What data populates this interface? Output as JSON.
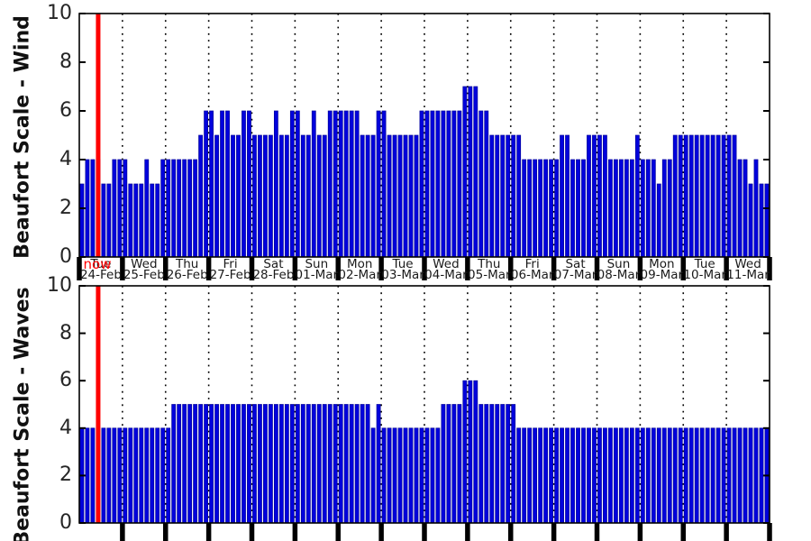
{
  "figure": {
    "background": "#ffffff",
    "bar_color": "#0202dd",
    "bar_edge_color": "#00009a",
    "axis_color": "#000000",
    "tick_label_color": "#262626",
    "day_label_color": "#1a1a1a",
    "now_line_color": "#ff0000",
    "now_label": "now",
    "bars_per_day": 8,
    "num_days": 16
  },
  "days": [
    {
      "name": "Tue",
      "date": "24-Feb"
    },
    {
      "name": "Wed",
      "date": "25-Feb"
    },
    {
      "name": "Thu",
      "date": "26-Feb"
    },
    {
      "name": "Fri",
      "date": "27-Feb"
    },
    {
      "name": "Sat",
      "date": "28-Feb"
    },
    {
      "name": "Sun",
      "date": "01-Mar"
    },
    {
      "name": "Mon",
      "date": "02-Mar"
    },
    {
      "name": "Tue",
      "date": "03-Mar"
    },
    {
      "name": "Wed",
      "date": "04-Mar"
    },
    {
      "name": "Thu",
      "date": "05-Mar"
    },
    {
      "name": "Fri",
      "date": "06-Mar"
    },
    {
      "name": "Sat",
      "date": "07-Mar"
    },
    {
      "name": "Sun",
      "date": "08-Mar"
    },
    {
      "name": "Mon",
      "date": "09-Mar"
    },
    {
      "name": "Tue",
      "date": "10-Mar"
    },
    {
      "name": "Wed",
      "date": "11-Mar"
    }
  ],
  "chart_data": [
    {
      "type": "bar",
      "title": "",
      "ylabel": "Beaufort Scale - Wind",
      "xlabel": "",
      "ylim": [
        0,
        10
      ],
      "yticks": [
        0,
        2,
        4,
        6,
        8,
        10
      ],
      "grid": "vertical dotted lines at each day boundary",
      "legend": "none",
      "x_interval_hours": 3,
      "x_tick_labels": [
        "Tue 24-Feb",
        "Wed 25-Feb",
        "Thu 26-Feb",
        "Fri 27-Feb",
        "Sat 28-Feb",
        "Sun 01-Mar",
        "Mon 02-Mar",
        "Tue 03-Mar",
        "Wed 04-Mar",
        "Thu 05-Mar",
        "Fri 06-Mar",
        "Sat 07-Mar",
        "Sun 08-Mar",
        "Mon 09-Mar",
        "Tue 10-Mar",
        "Wed 11-Mar"
      ],
      "now_marker": {
        "day_index": 0,
        "slot": 3.5,
        "label": "now"
      },
      "series": [
        {
          "name": "Wind Beaufort",
          "values": [
            3,
            4,
            4,
            4,
            3,
            3,
            4,
            4,
            4,
            3,
            3,
            3,
            4,
            3,
            3,
            4,
            4,
            4,
            4,
            4,
            4,
            4,
            5,
            6,
            6,
            5,
            6,
            6,
            5,
            5,
            6,
            6,
            5,
            5,
            5,
            5,
            6,
            5,
            5,
            6,
            6,
            5,
            5,
            6,
            5,
            5,
            6,
            6,
            6,
            6,
            6,
            6,
            5,
            5,
            5,
            6,
            6,
            5,
            5,
            5,
            5,
            5,
            5,
            6,
            6,
            6,
            6,
            6,
            6,
            6,
            6,
            7,
            7,
            7,
            6,
            6,
            5,
            5,
            5,
            5,
            5,
            5,
            4,
            4,
            4,
            4,
            4,
            4,
            4,
            5,
            5,
            4,
            4,
            4,
            5,
            5,
            5,
            5,
            4,
            4,
            4,
            4,
            4,
            5,
            4,
            4,
            4,
            3,
            4,
            4,
            5,
            5,
            5,
            5,
            5,
            5,
            5,
            5,
            5,
            5,
            5,
            5,
            4,
            4,
            3,
            4,
            3,
            3
          ]
        }
      ]
    },
    {
      "type": "bar",
      "title": "",
      "ylabel": "Beaufort Scale - Waves",
      "xlabel": "",
      "ylim": [
        0,
        10
      ],
      "yticks": [
        0,
        2,
        4,
        6,
        8,
        10
      ],
      "grid": "vertical dotted lines at each day boundary",
      "legend": "none",
      "x_interval_hours": 3,
      "x_tick_labels_visible": false,
      "now_marker": {
        "day_index": 0,
        "slot": 3.5
      },
      "series": [
        {
          "name": "Waves Beaufort",
          "values": [
            4,
            4,
            4,
            4,
            4,
            4,
            4,
            4,
            4,
            4,
            4,
            4,
            4,
            4,
            4,
            4,
            4,
            5,
            5,
            5,
            5,
            5,
            5,
            5,
            5,
            5,
            5,
            5,
            5,
            5,
            5,
            5,
            5,
            5,
            5,
            5,
            5,
            5,
            5,
            5,
            5,
            5,
            5,
            5,
            5,
            5,
            5,
            5,
            5,
            5,
            5,
            5,
            5,
            5,
            4,
            5,
            4,
            4,
            4,
            4,
            4,
            4,
            4,
            4,
            4,
            4,
            4,
            5,
            5,
            5,
            5,
            6,
            6,
            6,
            5,
            5,
            5,
            5,
            5,
            5,
            5,
            4,
            4,
            4,
            4,
            4,
            4,
            4,
            4,
            4,
            4,
            4,
            4,
            4,
            4,
            4,
            4,
            4,
            4,
            4,
            4,
            4,
            4,
            4,
            4,
            4,
            4,
            4,
            4,
            4,
            4,
            4,
            4,
            4,
            4,
            4,
            4,
            4,
            4,
            4,
            4,
            4,
            4,
            4,
            4,
            4,
            4,
            4
          ]
        }
      ]
    }
  ]
}
